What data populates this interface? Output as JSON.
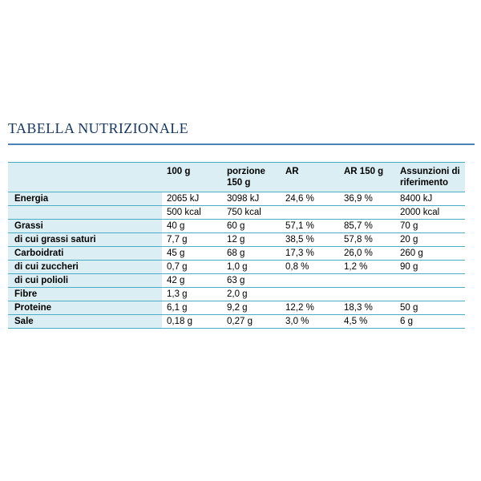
{
  "title": "TABELLA NUTRIZIONALE",
  "colors": {
    "title_color": "#17365d",
    "title_rule": "#4f81bd",
    "accent_line": "#4bacc6",
    "cell_fill": "#daeef3",
    "text_color": "#000000"
  },
  "table": {
    "columns": [
      "",
      "100 g",
      "porzione 150 g",
      "AR",
      "AR 150 g",
      "Assunzioni di riferimento"
    ],
    "rows": [
      {
        "label": "Energia",
        "values": [
          "2065 kJ",
          "3098 kJ",
          "24,6 %",
          "36,9 %",
          "8400 kJ"
        ]
      },
      {
        "label": "",
        "values": [
          "500 kcal",
          "750 kcal",
          "",
          "",
          "2000 kcal"
        ]
      },
      {
        "label": "Grassi",
        "values": [
          "40 g",
          "60 g",
          "57,1 %",
          "85,7 %",
          "70 g"
        ]
      },
      {
        "label": "di cui grassi saturi",
        "values": [
          "7,7 g",
          "12 g",
          "38,5 %",
          "57,8 %",
          "20 g"
        ]
      },
      {
        "label": "Carboidrati",
        "values": [
          "45 g",
          "68 g",
          "17,3 %",
          "26,0 %",
          "260 g"
        ]
      },
      {
        "label": "di cui zuccheri",
        "values": [
          "0,7 g",
          "1,0 g",
          "0,8 %",
          "1,2 %",
          "90 g"
        ]
      },
      {
        "label": "di cui polioli",
        "values": [
          "42 g",
          "63 g",
          "",
          "",
          ""
        ]
      },
      {
        "label": "Fibre",
        "values": [
          "1,3 g",
          "2,0 g",
          "",
          "",
          ""
        ]
      },
      {
        "label": "Proteine",
        "values": [
          "6,1 g",
          "9,2 g",
          "12,2 %",
          "18,3 %",
          "50 g"
        ]
      },
      {
        "label": "Sale",
        "values": [
          "0,18 g",
          "0,27 g",
          "3,0 %",
          "4,5 %",
          "6 g"
        ]
      }
    ]
  }
}
